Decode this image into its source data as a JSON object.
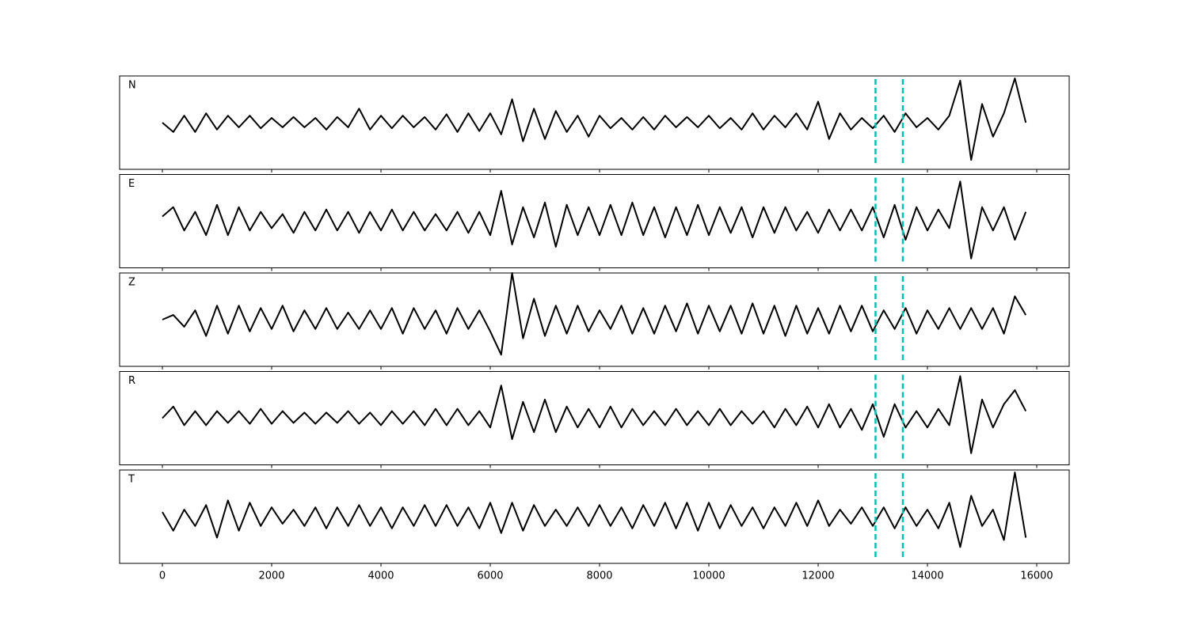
{
  "chart_data": {
    "type": "line",
    "x": [
      0,
      200,
      400,
      600,
      800,
      1000,
      1200,
      1400,
      1600,
      1800,
      2000,
      2200,
      2400,
      2600,
      2800,
      3000,
      3200,
      3400,
      3600,
      3800,
      4000,
      4200,
      4400,
      4600,
      4800,
      5000,
      5200,
      5400,
      5600,
      5800,
      6000,
      6200,
      6400,
      6600,
      6800,
      7000,
      7200,
      7400,
      7600,
      7800,
      8000,
      8200,
      8400,
      8600,
      8800,
      9000,
      9200,
      9400,
      9600,
      9800,
      10000,
      10200,
      10400,
      10600,
      10800,
      11000,
      11200,
      11400,
      11600,
      11800,
      12000,
      12200,
      12400,
      12600,
      12800,
      13000,
      13200,
      13400,
      13600,
      13800,
      14000,
      14200,
      14400,
      14600,
      14800,
      15000,
      15200,
      15400,
      15600,
      15800
    ],
    "xlim": [
      -783,
      16594
    ],
    "xticks": [
      0,
      2000,
      4000,
      6000,
      8000,
      10000,
      12000,
      14000,
      16000
    ],
    "ylim": [
      -1,
      1
    ],
    "series": [
      {
        "name": "N",
        "color": "#000000",
        "values": [
          0,
          -0.2,
          0.15,
          -0.2,
          0.2,
          -0.15,
          0.15,
          -0.1,
          0.15,
          -0.12,
          0.1,
          -0.1,
          0.12,
          -0.1,
          0.1,
          -0.15,
          0.12,
          -0.1,
          0.3,
          -0.15,
          0.15,
          -0.12,
          0.15,
          -0.1,
          0.12,
          -0.15,
          0.18,
          -0.2,
          0.2,
          -0.18,
          0.2,
          -0.25,
          0.5,
          -0.4,
          0.3,
          -0.35,
          0.25,
          -0.2,
          0.15,
          -0.3,
          0.15,
          -0.12,
          0.1,
          -0.15,
          0.12,
          -0.15,
          0.15,
          -0.1,
          0.12,
          -0.1,
          0.15,
          -0.12,
          0.1,
          -0.15,
          0.2,
          -0.15,
          0.15,
          -0.1,
          0.2,
          -0.15,
          0.45,
          -0.35,
          0.2,
          -0.15,
          0.1,
          -0.12,
          0.15,
          -0.2,
          0.2,
          -0.1,
          0.1,
          -0.15,
          0.15,
          0.9,
          -0.8,
          0.4,
          -0.3,
          0.2,
          0.95,
          0.0
        ]
      },
      {
        "name": "E",
        "color": "#000000",
        "values": [
          0.1,
          0.3,
          -0.2,
          0.2,
          -0.3,
          0.35,
          -0.3,
          0.3,
          -0.2,
          0.2,
          -0.15,
          0.15,
          -0.25,
          0.2,
          -0.2,
          0.25,
          -0.2,
          0.2,
          -0.25,
          0.2,
          -0.2,
          0.25,
          -0.2,
          0.2,
          -0.2,
          0.15,
          -0.2,
          0.2,
          -0.25,
          0.2,
          -0.3,
          0.65,
          -0.5,
          0.3,
          -0.35,
          0.4,
          -0.55,
          0.35,
          -0.3,
          0.3,
          -0.3,
          0.35,
          -0.3,
          0.4,
          -0.3,
          0.3,
          -0.35,
          0.3,
          -0.3,
          0.35,
          -0.3,
          0.3,
          -0.25,
          0.3,
          -0.35,
          0.3,
          -0.25,
          0.3,
          -0.2,
          0.2,
          -0.25,
          0.25,
          -0.2,
          0.25,
          -0.2,
          0.3,
          -0.35,
          0.35,
          -0.4,
          0.3,
          -0.2,
          0.25,
          -0.15,
          0.85,
          -0.8,
          0.3,
          -0.2,
          0.3,
          -0.4,
          0.2
        ]
      },
      {
        "name": "Z",
        "color": "#000000",
        "values": [
          0,
          0.1,
          -0.15,
          0.2,
          -0.35,
          0.3,
          -0.3,
          0.3,
          -0.25,
          0.25,
          -0.2,
          0.3,
          -0.25,
          0.2,
          -0.2,
          0.25,
          -0.2,
          0.15,
          -0.2,
          0.2,
          -0.2,
          0.25,
          -0.3,
          0.25,
          -0.2,
          0.2,
          -0.3,
          0.25,
          -0.2,
          0.2,
          -0.25,
          -0.75,
          1.0,
          -0.4,
          0.45,
          -0.35,
          0.3,
          -0.3,
          0.3,
          -0.25,
          0.2,
          -0.2,
          0.3,
          -0.3,
          0.25,
          -0.3,
          0.3,
          -0.25,
          0.35,
          -0.3,
          0.3,
          -0.25,
          0.3,
          -0.3,
          0.35,
          -0.3,
          0.3,
          -0.35,
          0.3,
          -0.3,
          0.25,
          -0.3,
          0.3,
          -0.25,
          0.3,
          -0.25,
          0.2,
          -0.2,
          0.25,
          -0.3,
          0.2,
          -0.2,
          0.25,
          -0.2,
          0.25,
          -0.2,
          0.25,
          -0.3,
          0.5,
          0.1
        ]
      },
      {
        "name": "R",
        "color": "#000000",
        "values": [
          0,
          0.25,
          -0.15,
          0.15,
          -0.15,
          0.15,
          -0.1,
          0.15,
          -0.12,
          0.2,
          -0.12,
          0.15,
          -0.1,
          0.12,
          -0.12,
          0.12,
          -0.1,
          0.15,
          -0.12,
          0.12,
          -0.15,
          0.15,
          -0.12,
          0.15,
          -0.15,
          0.2,
          -0.15,
          0.2,
          -0.15,
          0.15,
          -0.2,
          0.7,
          -0.45,
          0.35,
          -0.3,
          0.4,
          -0.3,
          0.25,
          -0.2,
          0.2,
          -0.2,
          0.25,
          -0.2,
          0.2,
          -0.15,
          0.15,
          -0.15,
          0.2,
          -0.15,
          0.15,
          -0.15,
          0.2,
          -0.15,
          0.15,
          -0.12,
          0.15,
          -0.2,
          0.2,
          -0.15,
          0.25,
          -0.2,
          0.3,
          -0.2,
          0.2,
          -0.25,
          0.3,
          -0.4,
          0.3,
          -0.2,
          0.15,
          -0.2,
          0.2,
          -0.15,
          0.9,
          -0.75,
          0.4,
          -0.2,
          0.3,
          0.6,
          0.15
        ]
      },
      {
        "name": "T",
        "color": "#000000",
        "values": [
          0.1,
          -0.3,
          0.15,
          -0.2,
          0.25,
          -0.45,
          0.35,
          -0.3,
          0.3,
          -0.2,
          0.2,
          -0.15,
          0.15,
          -0.2,
          0.2,
          -0.25,
          0.2,
          -0.2,
          0.25,
          -0.2,
          0.2,
          -0.25,
          0.2,
          -0.2,
          0.25,
          -0.2,
          0.25,
          -0.2,
          0.2,
          -0.25,
          0.3,
          -0.35,
          0.3,
          -0.3,
          0.25,
          -0.2,
          0.15,
          -0.2,
          0.2,
          -0.2,
          0.25,
          -0.2,
          0.2,
          -0.25,
          0.25,
          -0.2,
          0.3,
          -0.25,
          0.3,
          -0.3,
          0.3,
          -0.25,
          0.25,
          -0.2,
          0.2,
          -0.25,
          0.2,
          -0.2,
          0.3,
          -0.2,
          0.35,
          -0.2,
          0.15,
          -0.15,
          0.2,
          -0.2,
          0.2,
          -0.25,
          0.2,
          -0.2,
          0.15,
          -0.25,
          0.3,
          -0.65,
          0.45,
          -0.2,
          0.15,
          -0.5,
          0.95,
          -0.45
        ]
      }
    ],
    "vlines": [
      13050,
      13550
    ],
    "vline_color": "#00bfae",
    "vline_style": "dashed"
  }
}
